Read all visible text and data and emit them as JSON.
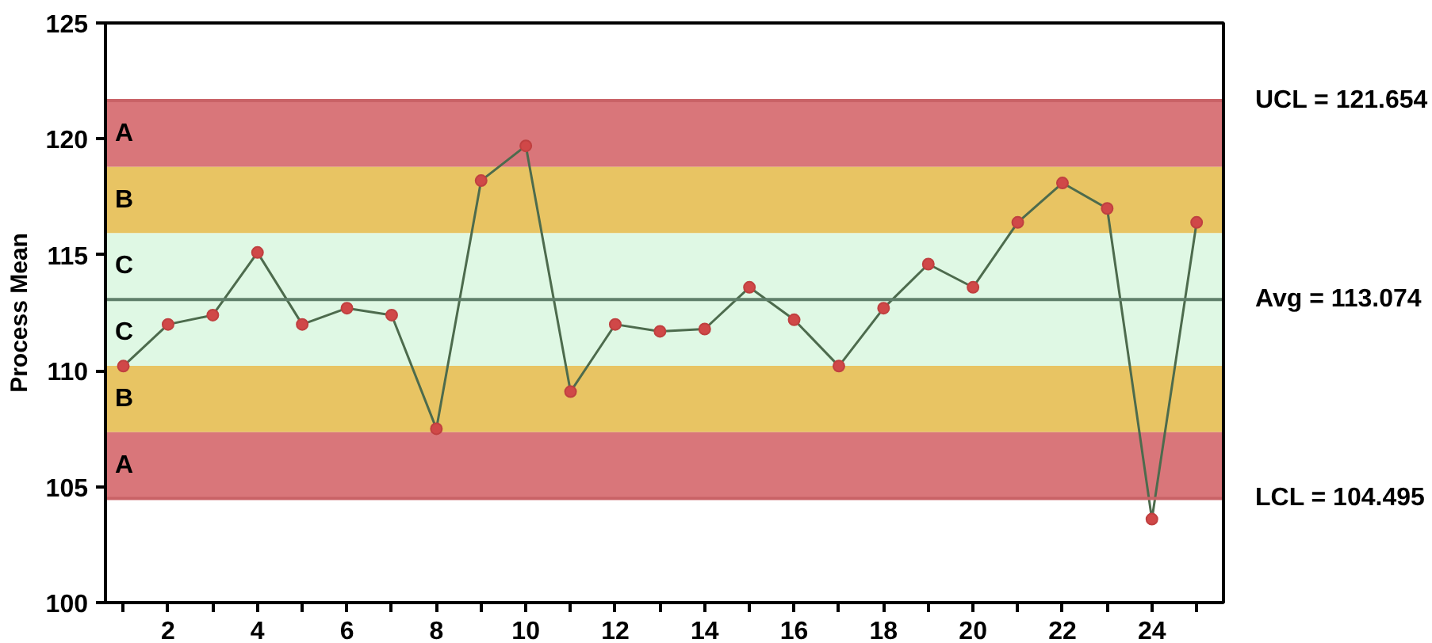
{
  "chart_data": {
    "type": "line",
    "ylabel": "Process Mean",
    "x": [
      1,
      2,
      3,
      4,
      5,
      6,
      7,
      8,
      9,
      10,
      11,
      12,
      13,
      14,
      15,
      16,
      17,
      18,
      19,
      20,
      21,
      22,
      23,
      24,
      25
    ],
    "series": [
      {
        "color": "#4d6b4d",
        "values": [
          110.2,
          112.0,
          112.4,
          115.1,
          112.0,
          112.7,
          112.4,
          107.5,
          118.2,
          119.7,
          109.1,
          112.0,
          111.7,
          111.8,
          113.6,
          112.2,
          110.2,
          112.7,
          114.6,
          113.6,
          116.4,
          118.1,
          117.0,
          103.6,
          116.4
        ]
      }
    ],
    "marker": "circle",
    "line_style": "solid",
    "grid": false,
    "xlim": [
      0.6,
      25.6
    ],
    "xticks": [
      {
        "value": 1,
        "label": null
      },
      2,
      {
        "value": 3,
        "label": null
      },
      4,
      {
        "value": 5,
        "label": null
      },
      6,
      {
        "value": 7,
        "label": null
      },
      8,
      {
        "value": 9,
        "label": null
      },
      10,
      {
        "value": 11,
        "label": null
      },
      12,
      {
        "value": 13,
        "label": null
      },
      14,
      {
        "value": 15,
        "label": null
      },
      16,
      {
        "value": 17,
        "label": null
      },
      18,
      {
        "value": 19,
        "label": null
      },
      20,
      {
        "value": 21,
        "label": null
      },
      22,
      {
        "value": 23,
        "label": null
      },
      24,
      {
        "value": 25,
        "label": null
      }
    ],
    "ylim": [
      100,
      125
    ],
    "yticks": [
      100,
      105,
      110,
      115,
      120,
      125
    ],
    "bands": [
      {
        "axis": "y",
        "from": 118.794,
        "to": 121.654,
        "label": "A",
        "color": "#d9767a"
      },
      {
        "axis": "y",
        "from": 115.934,
        "to": 118.794,
        "label": "B",
        "color": "#e8c463"
      },
      {
        "axis": "y",
        "from": 113.074,
        "to": 115.934,
        "label": "C",
        "color": "#dff8e4"
      },
      {
        "axis": "y",
        "from": 110.215,
        "to": 113.074,
        "label": "C",
        "color": "#dff8e4"
      },
      {
        "axis": "y",
        "from": 107.355,
        "to": 110.215,
        "label": "B",
        "color": "#e8c463"
      },
      {
        "axis": "y",
        "from": 104.495,
        "to": 107.355,
        "label": "A",
        "color": "#d9767a"
      }
    ],
    "ref_lines": [
      {
        "axis": "y",
        "value": 121.654,
        "label": "UCL = 121.654",
        "color": "#c96266"
      },
      {
        "axis": "y",
        "value": 113.074,
        "label": "Avg = 113.074",
        "color": "#5f7f6a"
      },
      {
        "axis": "y",
        "value": 104.495,
        "label": "LCL = 104.495",
        "color": "#c96266"
      }
    ]
  }
}
